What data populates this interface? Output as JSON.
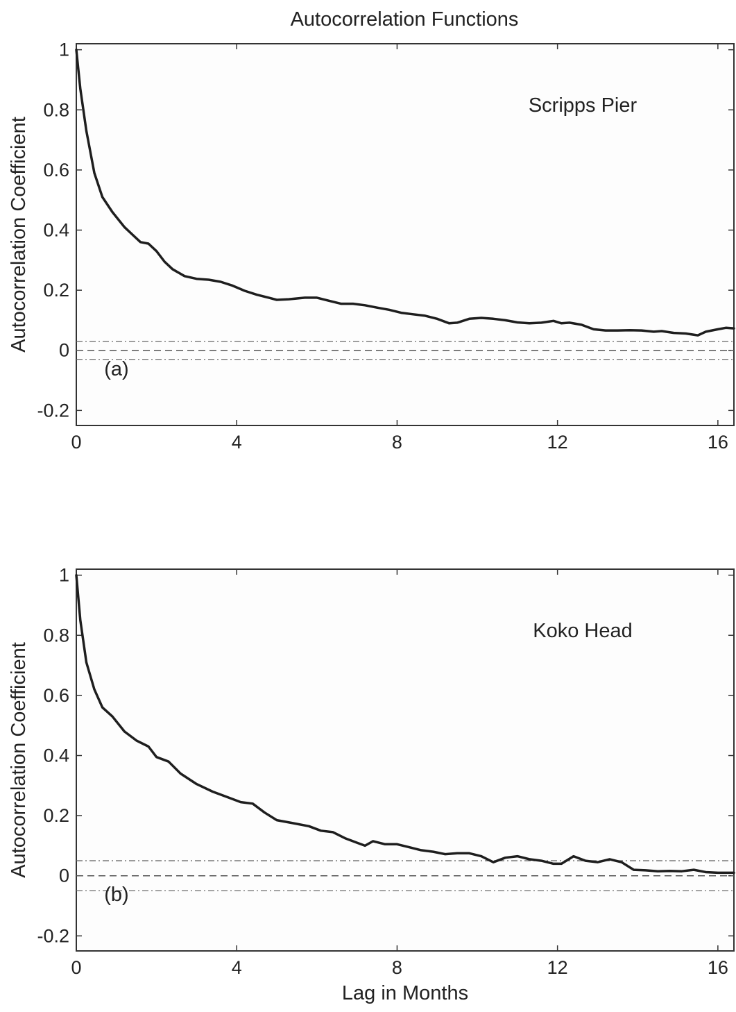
{
  "title": "Autocorrelation Functions",
  "chart_data": [
    {
      "type": "line",
      "panel": "(a)",
      "annotation": "Scripps Pier",
      "xlabel": "",
      "ylabel": "Autocorrelation Coefficient",
      "xlim": [
        0,
        16.4
      ],
      "ylim": [
        -0.25,
        1.02
      ],
      "xticks": [
        0,
        4,
        8,
        12,
        16
      ],
      "yticks": [
        -0.2,
        0,
        0.2,
        0.4,
        0.6,
        0.8,
        1
      ],
      "ytick_labels": [
        "-0.2",
        "0",
        "0.2",
        "0.4",
        "0.6",
        "0.8",
        "1"
      ],
      "xtick_labels": [
        "0",
        "4",
        "8",
        "12",
        "16"
      ],
      "confidence_band": 0.03,
      "series": [
        {
          "x": [
            0,
            0.1,
            0.25,
            0.45,
            0.65,
            0.9,
            1.2,
            1.4,
            1.6,
            1.8,
            2.0,
            2.2,
            2.4,
            2.7,
            3.0,
            3.3,
            3.6,
            3.9,
            4.2,
            4.5,
            4.8,
            5.0,
            5.3,
            5.7,
            6.0,
            6.3,
            6.6,
            6.9,
            7.2,
            7.5,
            7.8,
            8.1,
            8.4,
            8.7,
            9.0,
            9.3,
            9.5,
            9.8,
            10.1,
            10.4,
            10.7,
            11.0,
            11.3,
            11.6,
            11.9,
            12.1,
            12.3,
            12.6,
            12.9,
            13.2,
            13.5,
            13.8,
            14.1,
            14.4,
            14.6,
            14.9,
            15.2,
            15.5,
            15.7,
            16.0,
            16.2,
            16.4
          ],
          "y": [
            1.0,
            0.87,
            0.73,
            0.59,
            0.51,
            0.46,
            0.41,
            0.385,
            0.36,
            0.355,
            0.33,
            0.295,
            0.27,
            0.247,
            0.238,
            0.235,
            0.228,
            0.215,
            0.198,
            0.185,
            0.175,
            0.168,
            0.17,
            0.175,
            0.175,
            0.165,
            0.155,
            0.155,
            0.15,
            0.142,
            0.135,
            0.125,
            0.12,
            0.115,
            0.105,
            0.09,
            0.092,
            0.105,
            0.108,
            0.105,
            0.1,
            0.093,
            0.09,
            0.092,
            0.098,
            0.09,
            0.092,
            0.085,
            0.07,
            0.066,
            0.066,
            0.067,
            0.066,
            0.062,
            0.064,
            0.058,
            0.056,
            0.05,
            0.062,
            0.07,
            0.075,
            0.073
          ]
        }
      ]
    },
    {
      "type": "line",
      "panel": "(b)",
      "annotation": "Koko Head",
      "xlabel": "Lag in Months",
      "ylabel": "Autocorrelation Coefficient",
      "xlim": [
        0,
        16.4
      ],
      "ylim": [
        -0.25,
        1.02
      ],
      "xticks": [
        0,
        4,
        8,
        12,
        16
      ],
      "yticks": [
        -0.2,
        0,
        0.2,
        0.4,
        0.6,
        0.8,
        1
      ],
      "ytick_labels": [
        "-0.2",
        "0",
        "0.2",
        "0.4",
        "0.6",
        "0.8",
        "1"
      ],
      "xtick_labels": [
        "0",
        "4",
        "8",
        "12",
        "16"
      ],
      "confidence_band": 0.05,
      "series": [
        {
          "x": [
            0,
            0.1,
            0.25,
            0.45,
            0.65,
            0.9,
            1.2,
            1.5,
            1.8,
            2.0,
            2.3,
            2.6,
            3.0,
            3.4,
            3.8,
            4.1,
            4.4,
            4.7,
            5.0,
            5.4,
            5.8,
            6.1,
            6.4,
            6.7,
            7.0,
            7.2,
            7.4,
            7.7,
            8.0,
            8.3,
            8.6,
            8.9,
            9.2,
            9.5,
            9.8,
            10.1,
            10.4,
            10.7,
            11.0,
            11.3,
            11.6,
            11.9,
            12.1,
            12.4,
            12.7,
            13.0,
            13.3,
            13.6,
            13.9,
            14.2,
            14.5,
            14.8,
            15.1,
            15.4,
            15.7,
            16.0,
            16.4
          ],
          "y": [
            1.0,
            0.85,
            0.71,
            0.62,
            0.56,
            0.53,
            0.48,
            0.45,
            0.43,
            0.395,
            0.38,
            0.34,
            0.305,
            0.28,
            0.26,
            0.245,
            0.24,
            0.21,
            0.185,
            0.175,
            0.165,
            0.15,
            0.145,
            0.125,
            0.11,
            0.1,
            0.115,
            0.105,
            0.105,
            0.095,
            0.085,
            0.08,
            0.072,
            0.075,
            0.075,
            0.065,
            0.045,
            0.06,
            0.065,
            0.055,
            0.05,
            0.04,
            0.04,
            0.065,
            0.05,
            0.045,
            0.055,
            0.045,
            0.02,
            0.018,
            0.015,
            0.016,
            0.015,
            0.02,
            0.012,
            0.01,
            0.01
          ]
        }
      ]
    }
  ]
}
